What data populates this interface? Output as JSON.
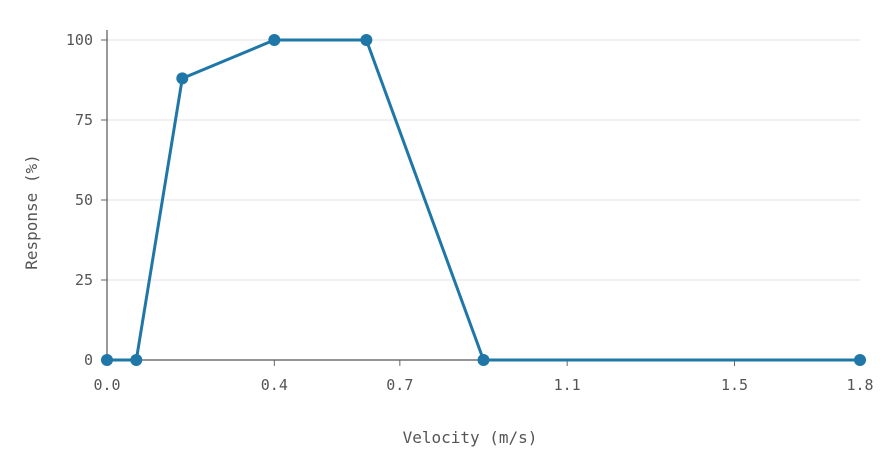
{
  "chart_data": {
    "type": "line",
    "title": "",
    "xlabel": "Velocity (m/s)",
    "ylabel": "Response (%)",
    "xlim": [
      0.0,
      1.8
    ],
    "ylim": [
      0,
      100
    ],
    "x_ticks": [
      0.0,
      0.4,
      0.7,
      1.1,
      1.5,
      1.8
    ],
    "x_tick_labels": [
      "0.0",
      "0.4",
      "0.7",
      "1.1",
      "1.5",
      "1.8"
    ],
    "y_ticks": [
      0,
      25,
      50,
      75,
      100
    ],
    "y_tick_labels": [
      "0",
      "25",
      "50",
      "75",
      "100"
    ],
    "grid": true,
    "legend": false,
    "series": [
      {
        "color": "#1f77a8",
        "x": [
          0.0,
          0.07,
          0.18,
          0.4,
          0.62,
          0.9,
          1.8
        ],
        "y": [
          0,
          0,
          88,
          100,
          100,
          0,
          0
        ]
      }
    ]
  }
}
